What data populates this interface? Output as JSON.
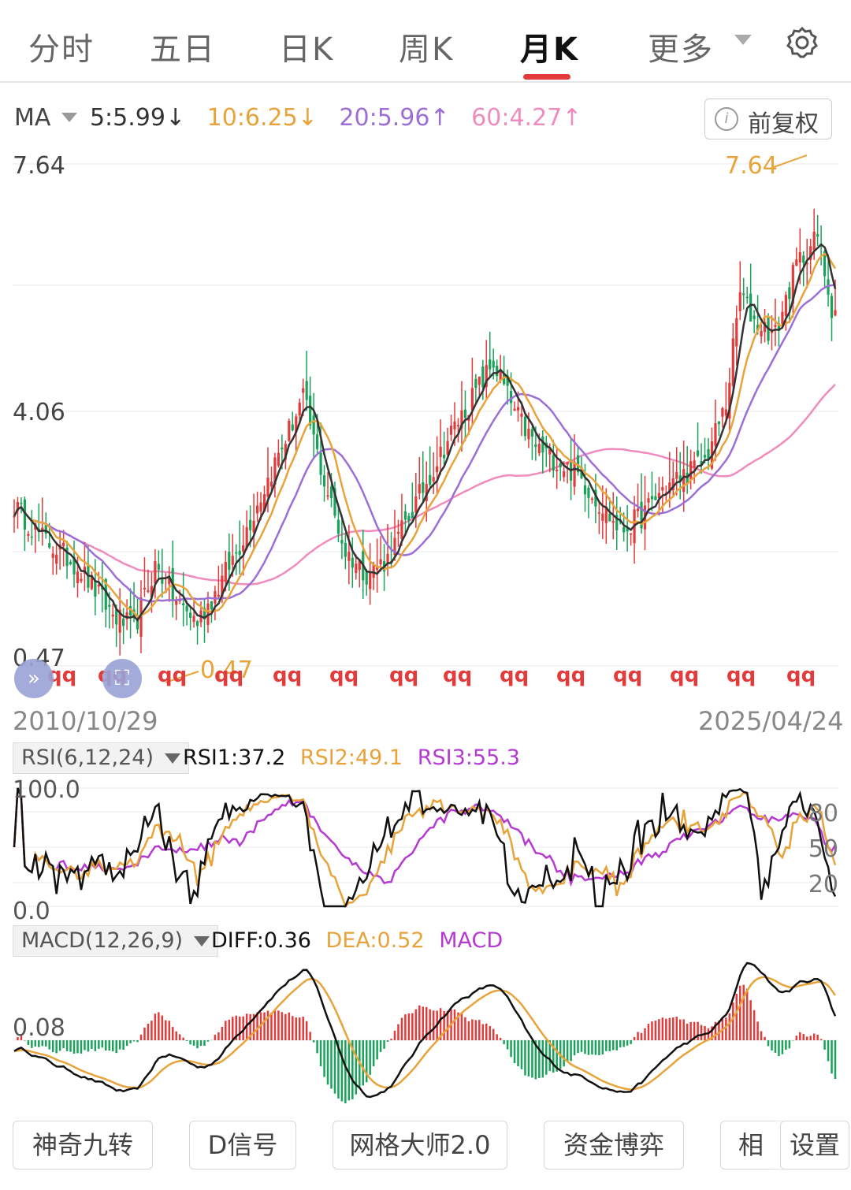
{
  "tabs": [
    {
      "label": "分时",
      "active": false
    },
    {
      "label": "五日",
      "active": false
    },
    {
      "label": "日K",
      "active": false
    },
    {
      "label": "周K",
      "active": false
    },
    {
      "label": "月K",
      "active": true
    },
    {
      "label": "更多",
      "active": false
    }
  ],
  "ma": {
    "label": "MA",
    "items": [
      {
        "text": "5:5.99↓",
        "color": "#333333"
      },
      {
        "text": "10:6.25↓",
        "color": "#e8a33a"
      },
      {
        "text": "20:5.96↑",
        "color": "#9b6fd6"
      },
      {
        "text": "60:4.27↑",
        "color": "#f08bbd"
      }
    ],
    "adjust_label": "前复权",
    "info_glyph": "i"
  },
  "colors": {
    "up": "#e23b3b",
    "down": "#1aa25a",
    "ma5": "#333333",
    "ma10": "#e8a33a",
    "ma20": "#9b6fd6",
    "ma60": "#f08bbd"
  },
  "main_axis": {
    "top_label": "7.64",
    "mid_label": "4.06",
    "bottom_label": "0.47",
    "high_marker": "7.64",
    "low_marker": "0.47",
    "signal_text": "qq"
  },
  "date_range": {
    "start": "2010/10/29",
    "end": "2025/04/24"
  },
  "rsi": {
    "label": "RSI(6,12,24)",
    "values": [
      {
        "text": "RSI1:37.2",
        "color": "#111111"
      },
      {
        "text": "RSI2:49.1",
        "color": "#e8a33a"
      },
      {
        "text": "RSI3:55.3",
        "color": "#b53ad1"
      }
    ],
    "axis_top": "100.0",
    "axis_bottom": "0.0",
    "right_ticks": [
      "80",
      "50",
      "20"
    ]
  },
  "macd": {
    "label": "MACD(12,26,9)",
    "values": [
      {
        "text": "DIFF:0.36",
        "color": "#111111"
      },
      {
        "text": "DEA:0.52",
        "color": "#e8a33a"
      },
      {
        "text": "MACD",
        "color": "#b53ad1"
      }
    ],
    "axis_label": "0.08"
  },
  "bottom_buttons": [
    "神奇九转",
    "D信号",
    "网格大师2.0",
    "资金博弈",
    "相",
    "设置"
  ],
  "icons": {
    "more": "chevron-down-icon",
    "settings": "gear-icon",
    "info": "info-icon",
    "expand": "double-chevron-icon"
  },
  "chart_data": {
    "type": "candlestick",
    "title": "",
    "period": "monthly",
    "ylim": [
      0.47,
      7.64
    ],
    "x_start": "2010/10/29",
    "x_end": "2025/04/24",
    "close_keypoints": [
      [
        0,
        2.75
      ],
      [
        8,
        2.3
      ],
      [
        18,
        1.9
      ],
      [
        28,
        1.2
      ],
      [
        34,
        1.0
      ],
      [
        40,
        1.9
      ],
      [
        46,
        1.4
      ],
      [
        52,
        1.1
      ],
      [
        58,
        1.6
      ],
      [
        64,
        2.2
      ],
      [
        70,
        2.9
      ],
      [
        76,
        3.6
      ],
      [
        82,
        4.3
      ],
      [
        88,
        3.1
      ],
      [
        94,
        2.1
      ],
      [
        100,
        1.8
      ],
      [
        106,
        2.0
      ],
      [
        112,
        2.6
      ],
      [
        118,
        3.2
      ],
      [
        124,
        3.8
      ],
      [
        130,
        4.3
      ],
      [
        136,
        4.8
      ],
      [
        142,
        4.1
      ],
      [
        148,
        3.6
      ],
      [
        154,
        3.4
      ],
      [
        160,
        3.2
      ],
      [
        166,
        2.8
      ],
      [
        172,
        2.4
      ],
      [
        178,
        2.6
      ],
      [
        184,
        3.0
      ],
      [
        190,
        3.2
      ],
      [
        196,
        3.4
      ],
      [
        202,
        4.2
      ],
      [
        206,
        5.8
      ],
      [
        210,
        5.4
      ],
      [
        216,
        5.2
      ],
      [
        222,
        6.2
      ],
      [
        228,
        6.6
      ],
      [
        232,
        5.6
      ]
    ],
    "ma5_last": 5.99,
    "ma10_last": 6.25,
    "ma20_last": 5.96,
    "ma60_last": 4.27,
    "rsi_last": {
      "rsi1": 37.2,
      "rsi2": 49.1,
      "rsi3": 55.3
    },
    "macd_last": {
      "diff": 0.36,
      "dea": 0.52
    }
  }
}
